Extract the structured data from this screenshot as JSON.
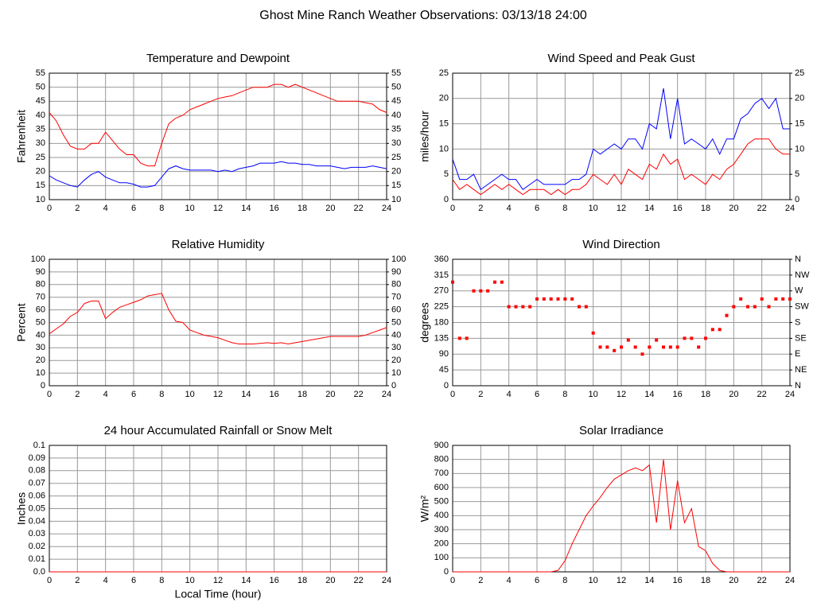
{
  "title": "Ghost Mine Ranch Weather Observations: 03/13/18 24:00",
  "chart_data": [
    {
      "type": "line",
      "title": "Temperature and Dewpoint",
      "ylabel": "Fahrenheit",
      "x": [
        0,
        0.5,
        1,
        1.5,
        2,
        2.5,
        3,
        3.5,
        4,
        4.5,
        5,
        5.5,
        6,
        6.5,
        7,
        7.5,
        8,
        8.5,
        9,
        9.5,
        10,
        10.5,
        11,
        11.5,
        12,
        12.5,
        13,
        13.5,
        14,
        14.5,
        15,
        15.5,
        16,
        16.5,
        17,
        17.5,
        18,
        18.5,
        19,
        19.5,
        20,
        20.5,
        21,
        21.5,
        22,
        22.5,
        23,
        23.5,
        24
      ],
      "series": [
        {
          "color": "#ff0000",
          "values": [
            41,
            38,
            33,
            29,
            28,
            28,
            30,
            30,
            34,
            31,
            28,
            26,
            26,
            23,
            22,
            22,
            30,
            37,
            39,
            40,
            42,
            43,
            44,
            45,
            46,
            46.5,
            47,
            48,
            49,
            50,
            50,
            50,
            51,
            51,
            50,
            51,
            50,
            49,
            48,
            47,
            46,
            45,
            45,
            45,
            45,
            44.5,
            44,
            42,
            41
          ]
        },
        {
          "color": "#0000ff",
          "values": [
            18.5,
            17,
            16,
            15,
            14.5,
            17,
            19,
            20,
            18,
            17,
            16,
            16,
            15.5,
            14.5,
            14.5,
            15,
            18,
            21,
            22,
            21,
            20.5,
            20.5,
            20.5,
            20.5,
            20,
            20.5,
            20,
            21,
            21.5,
            22,
            23,
            23,
            23,
            23.5,
            23,
            23,
            22.5,
            22.5,
            22,
            22,
            22,
            21.5,
            21,
            21.5,
            21.5,
            21.5,
            22,
            21.5,
            21
          ]
        }
      ],
      "xlim": [
        0,
        24
      ],
      "xticks": [
        0,
        2,
        4,
        6,
        8,
        10,
        12,
        14,
        16,
        18,
        20,
        22,
        24
      ],
      "ylim": [
        10,
        55
      ],
      "yticks": [
        10,
        15,
        20,
        25,
        30,
        35,
        40,
        45,
        50,
        55
      ],
      "y2ticks": [
        10,
        15,
        20,
        25,
        30,
        35,
        40,
        45,
        50,
        55
      ],
      "grid": true
    },
    {
      "type": "line",
      "title": "Wind Speed and Peak Gust",
      "ylabel": "miles/hour",
      "x": [
        0,
        0.5,
        1,
        1.5,
        2,
        2.5,
        3,
        3.5,
        4,
        4.5,
        5,
        5.5,
        6,
        6.5,
        7,
        7.5,
        8,
        8.5,
        9,
        9.5,
        10,
        10.5,
        11,
        11.5,
        12,
        12.5,
        13,
        13.5,
        14,
        14.5,
        15,
        15.5,
        16,
        16.5,
        17,
        17.5,
        18,
        18.5,
        19,
        19.5,
        20,
        20.5,
        21,
        21.5,
        22,
        22.5,
        23,
        23.5,
        24
      ],
      "series": [
        {
          "color": "#0000ff",
          "values": [
            8,
            4,
            4,
            5,
            2,
            3,
            4,
            5,
            4,
            4,
            2,
            3,
            4,
            3,
            3,
            3,
            3,
            4,
            4,
            5,
            10,
            9,
            10,
            11,
            10,
            12,
            12,
            10,
            15,
            14,
            22,
            12,
            20,
            11,
            12,
            11,
            10,
            12,
            9,
            12,
            12,
            16,
            17,
            19,
            20,
            18,
            20,
            14,
            14
          ]
        },
        {
          "color": "#ff0000",
          "values": [
            4,
            2,
            3,
            2,
            1,
            2,
            3,
            2,
            3,
            2,
            1,
            2,
            2,
            2,
            1,
            2,
            1,
            2,
            2,
            3,
            5,
            4,
            3,
            5,
            3,
            6,
            5,
            4,
            7,
            6,
            9,
            7,
            8,
            4,
            5,
            4,
            3,
            5,
            4,
            6,
            7,
            9,
            11,
            12,
            12,
            12,
            10,
            9,
            9
          ]
        }
      ],
      "xlim": [
        0,
        24
      ],
      "xticks": [
        0,
        2,
        4,
        6,
        8,
        10,
        12,
        14,
        16,
        18,
        20,
        22,
        24
      ],
      "ylim": [
        0,
        25
      ],
      "yticks": [
        0,
        5,
        10,
        15,
        20,
        25
      ],
      "y2ticks": [
        0,
        5,
        10,
        15,
        20,
        25
      ],
      "grid": true
    },
    {
      "type": "line",
      "title": "Relative Humidity",
      "ylabel": "Percent",
      "x": [
        0,
        0.5,
        1,
        1.5,
        2,
        2.5,
        3,
        3.5,
        4,
        4.5,
        5,
        5.5,
        6,
        6.5,
        7,
        7.5,
        8,
        8.5,
        9,
        9.5,
        10,
        10.5,
        11,
        11.5,
        12,
        12.5,
        13,
        13.5,
        14,
        14.5,
        15,
        15.5,
        16,
        16.5,
        17,
        17.5,
        18,
        18.5,
        19,
        19.5,
        20,
        20.5,
        21,
        21.5,
        22,
        22.5,
        23,
        23.5,
        24
      ],
      "series": [
        {
          "color": "#ff0000",
          "values": [
            41,
            45,
            49,
            55,
            58,
            65,
            67,
            67,
            53,
            58,
            62,
            64,
            66,
            68,
            71,
            72,
            73,
            60,
            51,
            50,
            44,
            42,
            40,
            39,
            38,
            36,
            34,
            33,
            33,
            33,
            33.5,
            34,
            33.5,
            34,
            33,
            34,
            35,
            36,
            37,
            38,
            39,
            39,
            39,
            39,
            39,
            40,
            42,
            44,
            46
          ]
        }
      ],
      "xlim": [
        0,
        24
      ],
      "xticks": [
        0,
        2,
        4,
        6,
        8,
        10,
        12,
        14,
        16,
        18,
        20,
        22,
        24
      ],
      "ylim": [
        0,
        100
      ],
      "yticks": [
        0,
        10,
        20,
        30,
        40,
        50,
        60,
        70,
        80,
        90,
        100
      ],
      "y2ticks": [
        0,
        10,
        20,
        30,
        40,
        50,
        60,
        70,
        80,
        90,
        100
      ],
      "grid": true
    },
    {
      "type": "scatter",
      "title": "Wind Direction",
      "ylabel": "degrees",
      "x": [
        0,
        0.5,
        1,
        1.5,
        2,
        2.5,
        3,
        3.5,
        4,
        4.5,
        5,
        5.5,
        6,
        6.5,
        7,
        7.5,
        8,
        8.5,
        9,
        9.5,
        10,
        10.5,
        11,
        11.5,
        12,
        12.5,
        13,
        13.5,
        14,
        14.5,
        15,
        15.5,
        16,
        16.5,
        17,
        17.5,
        18,
        18.5,
        19,
        19.5,
        20,
        20.5,
        21,
        21.5,
        22,
        22.5,
        23,
        23.5,
        24
      ],
      "series": [
        {
          "color": "#ff0000",
          "values": [
            295,
            135,
            135,
            270,
            270,
            270,
            295,
            295,
            225,
            225,
            225,
            225,
            247,
            247,
            247,
            247,
            247,
            247,
            225,
            225,
            150,
            110,
            110,
            100,
            110,
            130,
            110,
            90,
            110,
            130,
            110,
            110,
            110,
            135,
            135,
            110,
            135,
            160,
            160,
            200,
            225,
            247,
            225,
            225,
            247,
            225,
            247,
            247,
            247
          ]
        }
      ],
      "xlim": [
        0,
        24
      ],
      "xticks": [
        0,
        2,
        4,
        6,
        8,
        10,
        12,
        14,
        16,
        18,
        20,
        22,
        24
      ],
      "ylim": [
        0,
        360
      ],
      "yticks": [
        0,
        45,
        90,
        135,
        180,
        225,
        270,
        315,
        360
      ],
      "y2ticks": [
        {
          "value": 0,
          "label": "N"
        },
        {
          "value": 45,
          "label": "NE"
        },
        {
          "value": 90,
          "label": "E"
        },
        {
          "value": 135,
          "label": "SE"
        },
        {
          "value": 180,
          "label": "S"
        },
        {
          "value": 225,
          "label": "SW"
        },
        {
          "value": 270,
          "label": "W"
        },
        {
          "value": 315,
          "label": "NW"
        },
        {
          "value": 360,
          "label": "N"
        }
      ],
      "grid": true
    },
    {
      "type": "line",
      "title": "24 hour Accumulated Rainfall or Snow Melt",
      "ylabel": "Inches",
      "xlabel": "Local Time (hour)",
      "x": [
        0,
        24
      ],
      "series": [
        {
          "color": "#ff0000",
          "values": [
            0,
            0
          ]
        }
      ],
      "xlim": [
        0,
        24
      ],
      "xticks": [
        0,
        2,
        4,
        6,
        8,
        10,
        12,
        14,
        16,
        18,
        20,
        22,
        24
      ],
      "ylim": [
        0,
        0.1
      ],
      "yticks": [
        {
          "value": 0,
          "label": "0.0"
        },
        0.01,
        0.02,
        0.03,
        0.04,
        0.05,
        0.06,
        0.07,
        0.08,
        0.09,
        0.1
      ],
      "grid": true
    },
    {
      "type": "line",
      "title": "Solar Irradiance",
      "ylabel": "W/m²",
      "x": [
        0,
        0.5,
        1,
        1.5,
        2,
        2.5,
        3,
        3.5,
        4,
        4.5,
        5,
        5.5,
        6,
        6.5,
        7,
        7.5,
        8,
        8.5,
        9,
        9.5,
        10,
        10.5,
        11,
        11.5,
        12,
        12.5,
        13,
        13.5,
        14,
        14.5,
        15,
        15.5,
        16,
        16.5,
        17,
        17.5,
        18,
        18.5,
        19,
        19.5,
        20,
        20.5,
        21,
        21.5,
        22,
        22.5,
        23,
        23.5,
        24
      ],
      "series": [
        {
          "color": "#ff0000",
          "values": [
            0,
            0,
            0,
            0,
            0,
            0,
            0,
            0,
            0,
            0,
            0,
            0,
            0,
            0,
            0,
            10,
            80,
            200,
            300,
            400,
            470,
            530,
            600,
            660,
            690,
            720,
            740,
            720,
            760,
            350,
            800,
            300,
            650,
            350,
            450,
            180,
            150,
            60,
            10,
            0,
            0,
            0,
            0,
            0,
            0,
            0,
            0,
            0,
            0
          ]
        }
      ],
      "xlim": [
        0,
        24
      ],
      "xticks": [
        0,
        2,
        4,
        6,
        8,
        10,
        12,
        14,
        16,
        18,
        20,
        22,
        24
      ],
      "ylim": [
        0,
        900
      ],
      "yticks": [
        0,
        100,
        200,
        300,
        400,
        500,
        600,
        700,
        800,
        900
      ],
      "grid": true
    }
  ]
}
